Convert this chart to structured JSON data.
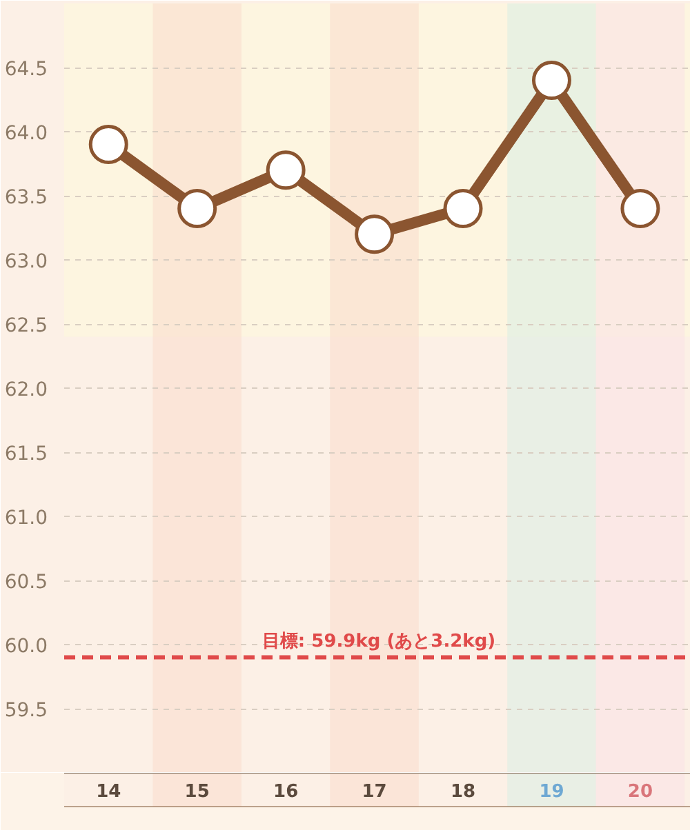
{
  "chart_data": {
    "type": "line",
    "x": [
      14,
      15,
      16,
      17,
      18,
      19,
      20
    ],
    "series": [
      {
        "color": "#8b5530",
        "values": [
          63.9,
          63.4,
          63.7,
          63.2,
          63.4,
          64.4,
          63.4
        ]
      }
    ],
    "xlim": [
      13.5,
      20.6
    ],
    "xticks": [
      14,
      15,
      16,
      17,
      18,
      19,
      20
    ],
    "ylim": [
      59.0,
      65.0
    ],
    "yticks": [
      59.5,
      {
        "value": 60,
        "label": "60.0"
      },
      60.5,
      {
        "value": 61,
        "label": "61.0"
      },
      61.5,
      {
        "value": 62,
        "label": "62.0"
      },
      62.5,
      {
        "value": 63,
        "label": "63.0"
      },
      63.5,
      {
        "value": 64,
        "label": "64.0"
      },
      64.5
    ],
    "grid": "y",
    "marker": "circle",
    "line_style": "solid",
    "ref_lines": [
      {
        "axis": "y",
        "value": 59.9,
        "label": "目標: 59.9kg (あと3.2kg)",
        "color": "#e04a4a",
        "line_style": "dashed"
      }
    ],
    "bands": [
      {
        "axis": "y",
        "from": 62.4,
        "to": 65.0,
        "color": "#fefada"
      },
      {
        "axis": "x",
        "from": 14.5,
        "to": 15.5,
        "color": "#fadaca"
      },
      {
        "axis": "x",
        "from": 16.5,
        "to": 17.5,
        "color": "#fadaca"
      },
      {
        "axis": "x",
        "from": 18.5,
        "to": 19.5,
        "color": "#d6eee4"
      },
      {
        "axis": "x",
        "from": 19.5,
        "to": 20.5,
        "color": "#fae0e6"
      }
    ]
  }
}
